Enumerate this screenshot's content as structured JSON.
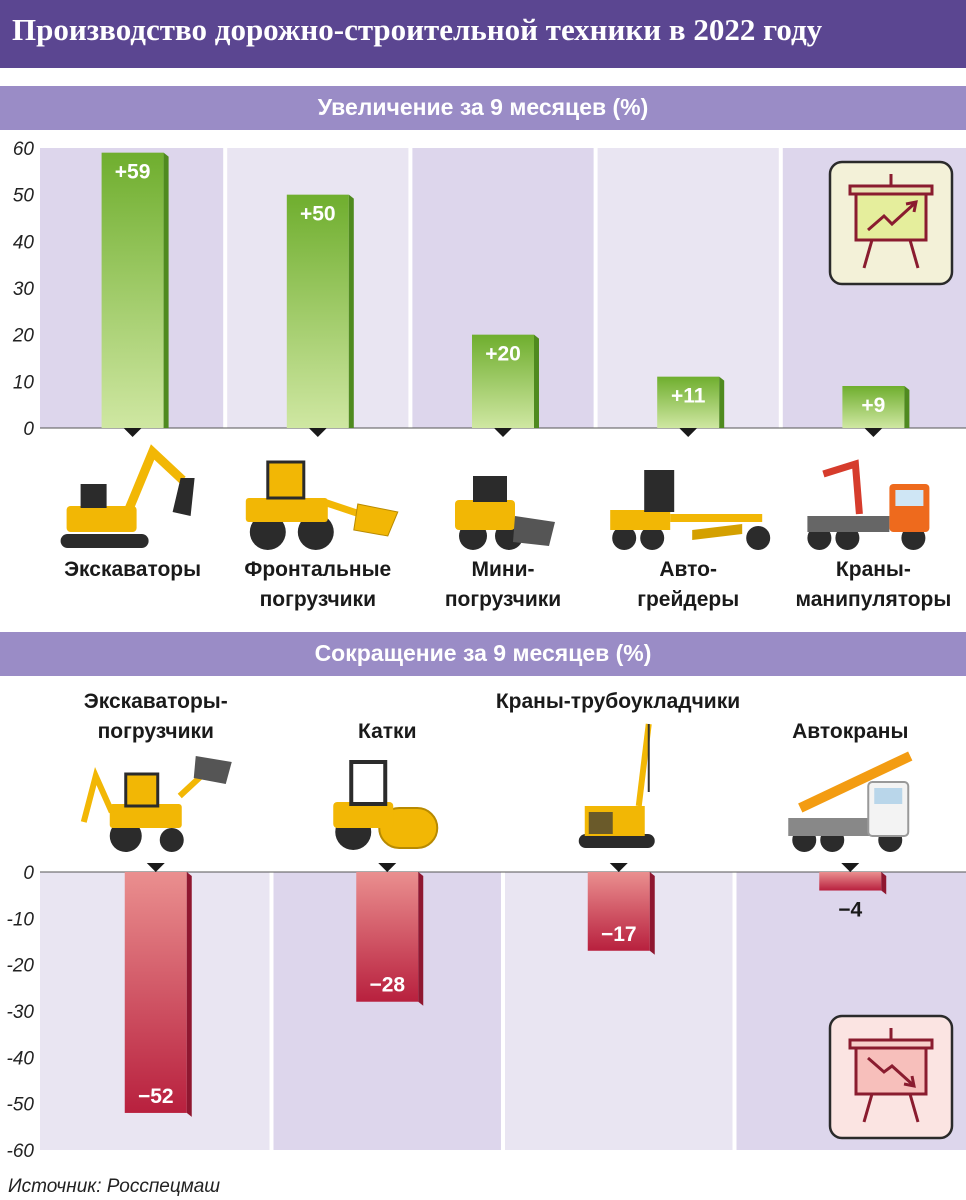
{
  "title": "Производство дорожно-строительной техники в 2022 году",
  "source": "Источник: Росспецмаш",
  "colors": {
    "header_bg": "#5b4691",
    "band_bg": "#9a8cc6",
    "panel_dark": "#ddd6ec",
    "panel_light": "#e9e5f2",
    "increase_bar": "#7cb839",
    "decrease_bar": "#c8374f"
  },
  "icons": {
    "increase": "chart-up-board-icon",
    "decrease": "chart-down-board-icon"
  },
  "chart_data": [
    {
      "type": "bar",
      "title": "Увеличение за 9 месяцев (%)",
      "categories": [
        "Экскаваторы",
        "Фронтальные погрузчики",
        "Мини-погрузчики",
        "Авто-грейдеры",
        "Краны-манипуляторы"
      ],
      "category_lines": [
        [
          "Экскаваторы"
        ],
        [
          "Фронтальные",
          "погрузчики"
        ],
        [
          "Мини-",
          "погрузчики"
        ],
        [
          "Авто-",
          "грейдеры"
        ],
        [
          "Краны-",
          "манипуляторы"
        ]
      ],
      "values": [
        59,
        50,
        20,
        11,
        9
      ],
      "data_labels": [
        "+59",
        "+50",
        "+20",
        "+11",
        "+9"
      ],
      "yticks": [
        "60",
        "50",
        "40",
        "30",
        "20",
        "10",
        "0"
      ],
      "ylim": [
        0,
        60
      ],
      "xlabel": "",
      "ylabel": "",
      "grid": false
    },
    {
      "type": "bar",
      "title": "Сокращение за 9 месяцев (%)",
      "categories": [
        "Экскаваторы-погрузчики",
        "Катки",
        "Краны-трубоукладчики",
        "Автокраны"
      ],
      "category_lines": [
        [
          "Экскаваторы-",
          "погрузчики"
        ],
        [
          "Катки"
        ],
        [
          "Краны-трубоукладчики"
        ],
        [
          "Автокраны"
        ]
      ],
      "values": [
        -52,
        -28,
        -17,
        -4
      ],
      "data_labels": [
        "−52",
        "−28",
        "−17",
        "−4"
      ],
      "yticks": [
        "0",
        "-10",
        "-20",
        "-30",
        "-40",
        "-50",
        "-60"
      ],
      "ylim": [
        -60,
        0
      ],
      "xlabel": "",
      "ylabel": "",
      "grid": false
    }
  ]
}
